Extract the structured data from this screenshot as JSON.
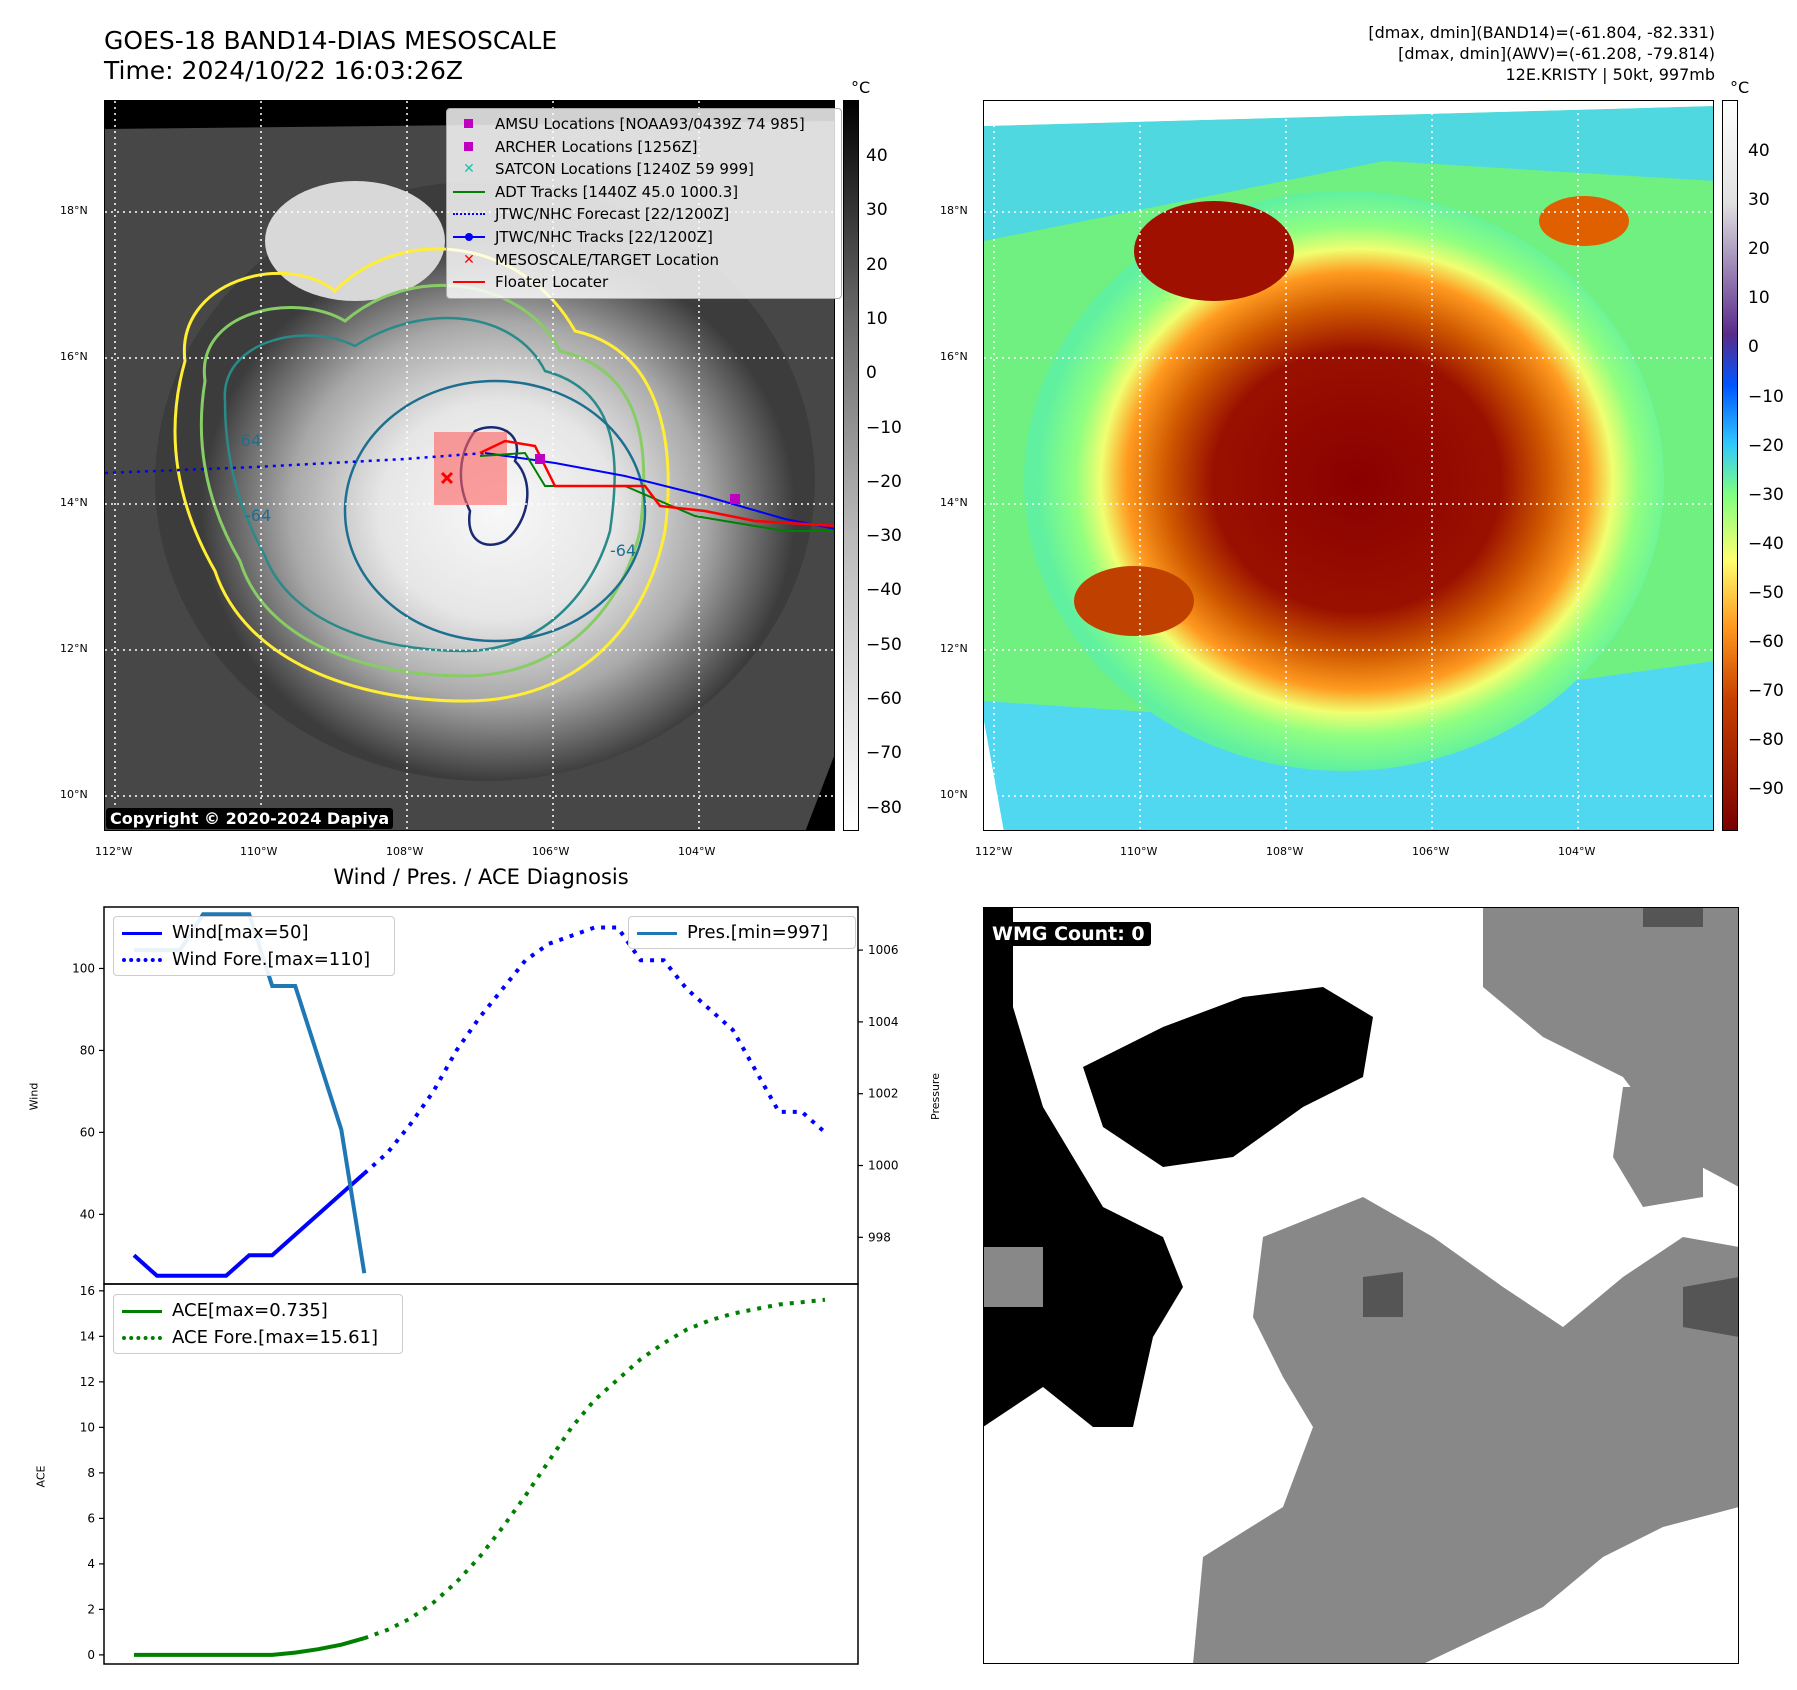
{
  "header": {
    "title_line1": "GOES-18 BAND14-DIAS MESOSCALE",
    "title_line2": "Time: 2024/10/22 16:03:26Z",
    "stats_line1": "[dmax, dmin](BAND14)=(-61.804, -82.331)",
    "stats_line2": "[dmax, dmin](AWV)=(-61.208, -79.814)",
    "stats_line3": "12E.KRISTY | 50kt, 997mb"
  },
  "map": {
    "lat_labels": [
      "18°N",
      "16°N",
      "14°N",
      "12°N",
      "10°N"
    ],
    "lon_labels": [
      "112°W",
      "110°W",
      "108°W",
      "106°W",
      "104°W"
    ],
    "contour_label": "-64",
    "copyright": "Copyright © 2020-2024 Dapiya"
  },
  "colorbar_ir": {
    "unit": "°C",
    "ticks": [
      "40",
      "30",
      "20",
      "10",
      "0",
      "−10",
      "−20",
      "−30",
      "−40",
      "−50",
      "−60",
      "−70",
      "−80"
    ]
  },
  "colorbar_color": {
    "unit": "°C",
    "ticks": [
      "40",
      "30",
      "20",
      "10",
      "0",
      "−10",
      "−20",
      "−30",
      "−40",
      "−50",
      "−60",
      "−70",
      "−80",
      "−90"
    ]
  },
  "legend": {
    "items": [
      {
        "label": "AMSU Locations [NOAA93/0439Z 74 985]",
        "color": "#c000c0",
        "marker": "square"
      },
      {
        "label": "ARCHER Locations [1256Z]",
        "color": "#c000c0",
        "marker": "square"
      },
      {
        "label": "SATCON Locations [1240Z 59 999]",
        "color": "#20c0b0",
        "marker": "x"
      },
      {
        "label": "ADT Tracks [1440Z 45.0 1000.3]",
        "color": "#008000",
        "marker": "line"
      },
      {
        "label": "JTWC/NHC Forecast [22/1200Z]",
        "color": "#0000ff",
        "marker": "dotted"
      },
      {
        "label": "JTWC/NHC Tracks [22/1200Z]",
        "color": "#0000ff",
        "marker": "line-dot"
      },
      {
        "label": "MESOSCALE/TARGET Location",
        "color": "#ff0000",
        "marker": "x"
      },
      {
        "label": "Floater Locater",
        "color": "#ff0000",
        "marker": "line"
      }
    ]
  },
  "diagnosis": {
    "title": "Wind / Pres. / ACE Diagnosis",
    "wind_ylabel": "Wind",
    "pres_ylabel": "Pressure",
    "ace_ylabel": "ACE",
    "legend_wind": "Wind[max=50]",
    "legend_wind_fore": "Wind Fore.[max=110]",
    "legend_pres": "Pres.[min=997]",
    "legend_ace": "ACE[max=0.735]",
    "legend_ace_fore": "ACE Fore.[max=15.61]",
    "wmg_label": "WMG Count: 0"
  },
  "chart_data": [
    {
      "type": "line",
      "title": "Wind / Pres. / ACE Diagnosis",
      "ylabel": "Wind",
      "ylim": [
        23,
        115
      ],
      "yticks": [
        40,
        60,
        80,
        100
      ],
      "xlim": [
        0,
        31
      ],
      "series": [
        {
          "name": "Wind[max=50]",
          "color": "#0000ff",
          "style": "solid",
          "x": [
            0,
            1,
            2,
            3,
            4,
            5,
            6,
            7,
            8,
            9,
            10
          ],
          "y": [
            30,
            25,
            25,
            25,
            25,
            30,
            30,
            35,
            40,
            45,
            50
          ]
        },
        {
          "name": "Wind Fore.[max=110]",
          "color": "#0000ff",
          "style": "dotted",
          "x": [
            10,
            11,
            12,
            13,
            14,
            15,
            16,
            17,
            18,
            19,
            20,
            21,
            22,
            23,
            24,
            25,
            26,
            27,
            28,
            29,
            30
          ],
          "y": [
            50,
            55,
            62,
            70,
            80,
            88,
            95,
            102,
            106,
            108,
            110,
            110,
            102,
            102,
            95,
            90,
            85,
            75,
            65,
            65,
            60
          ]
        }
      ]
    },
    {
      "type": "line",
      "ylabel": "Pressure",
      "ylim": [
        996.7,
        1007.2
      ],
      "yticks": [
        998,
        1000,
        1002,
        1004,
        1006
      ],
      "xlim": [
        0,
        31
      ],
      "series": [
        {
          "name": "Pres.[min=997]",
          "color": "#1f77b4",
          "style": "solid",
          "x": [
            0,
            1,
            2,
            3,
            4,
            5,
            6,
            7,
            8,
            9,
            10
          ],
          "y": [
            1006,
            1006,
            1006,
            1007,
            1007,
            1007,
            1005,
            1005,
            1003,
            1001,
            997
          ]
        }
      ]
    },
    {
      "type": "line",
      "ylabel": "ACE",
      "ylim": [
        -0.4,
        16.3
      ],
      "yticks": [
        0,
        2,
        4,
        6,
        8,
        10,
        12,
        14,
        16
      ],
      "xlim": [
        0,
        31
      ],
      "series": [
        {
          "name": "ACE[max=0.735]",
          "color": "#008000",
          "style": "solid",
          "x": [
            0,
            1,
            2,
            3,
            4,
            5,
            6,
            7,
            8,
            9,
            10
          ],
          "y": [
            0,
            0,
            0,
            0,
            0,
            0,
            0,
            0.1,
            0.25,
            0.45,
            0.735
          ]
        },
        {
          "name": "ACE Fore.[max=15.61]",
          "color": "#008000",
          "style": "dotted",
          "x": [
            10,
            11,
            12,
            13,
            14,
            15,
            16,
            17,
            18,
            19,
            20,
            21,
            22,
            23,
            24,
            25,
            26,
            27,
            28,
            29,
            30
          ],
          "y": [
            0.735,
            1.1,
            1.6,
            2.3,
            3.2,
            4.3,
            5.6,
            7.0,
            8.5,
            10.0,
            11.2,
            12.1,
            13.0,
            13.7,
            14.3,
            14.7,
            15.0,
            15.2,
            15.4,
            15.5,
            15.61
          ]
        }
      ]
    }
  ]
}
